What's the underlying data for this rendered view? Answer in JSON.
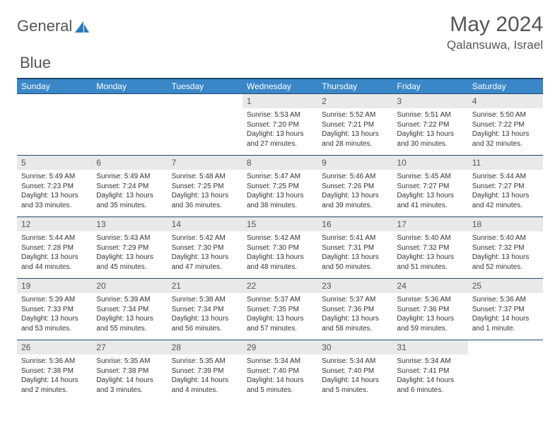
{
  "logo": {
    "text1": "General",
    "text2": "Blue",
    "accent": "#2d79bd"
  },
  "header": {
    "month": "May 2024",
    "location": "Qalansuwa, Israel"
  },
  "calendar": {
    "day_names": [
      "Sunday",
      "Monday",
      "Tuesday",
      "Wednesday",
      "Thursday",
      "Friday",
      "Saturday"
    ],
    "colors": {
      "header_bg": "#3a87c8",
      "header_border": "#20486b",
      "daynum_bg": "#e9e9e9"
    },
    "weeks": [
      [
        null,
        null,
        null,
        {
          "n": "1",
          "sr": "Sunrise: 5:53 AM",
          "ss": "Sunset: 7:20 PM",
          "dl": "Daylight: 13 hours and 27 minutes."
        },
        {
          "n": "2",
          "sr": "Sunrise: 5:52 AM",
          "ss": "Sunset: 7:21 PM",
          "dl": "Daylight: 13 hours and 28 minutes."
        },
        {
          "n": "3",
          "sr": "Sunrise: 5:51 AM",
          "ss": "Sunset: 7:22 PM",
          "dl": "Daylight: 13 hours and 30 minutes."
        },
        {
          "n": "4",
          "sr": "Sunrise: 5:50 AM",
          "ss": "Sunset: 7:22 PM",
          "dl": "Daylight: 13 hours and 32 minutes."
        }
      ],
      [
        {
          "n": "5",
          "sr": "Sunrise: 5:49 AM",
          "ss": "Sunset: 7:23 PM",
          "dl": "Daylight: 13 hours and 33 minutes."
        },
        {
          "n": "6",
          "sr": "Sunrise: 5:49 AM",
          "ss": "Sunset: 7:24 PM",
          "dl": "Daylight: 13 hours and 35 minutes."
        },
        {
          "n": "7",
          "sr": "Sunrise: 5:48 AM",
          "ss": "Sunset: 7:25 PM",
          "dl": "Daylight: 13 hours and 36 minutes."
        },
        {
          "n": "8",
          "sr": "Sunrise: 5:47 AM",
          "ss": "Sunset: 7:25 PM",
          "dl": "Daylight: 13 hours and 38 minutes."
        },
        {
          "n": "9",
          "sr": "Sunrise: 5:46 AM",
          "ss": "Sunset: 7:26 PM",
          "dl": "Daylight: 13 hours and 39 minutes."
        },
        {
          "n": "10",
          "sr": "Sunrise: 5:45 AM",
          "ss": "Sunset: 7:27 PM",
          "dl": "Daylight: 13 hours and 41 minutes."
        },
        {
          "n": "11",
          "sr": "Sunrise: 5:44 AM",
          "ss": "Sunset: 7:27 PM",
          "dl": "Daylight: 13 hours and 42 minutes."
        }
      ],
      [
        {
          "n": "12",
          "sr": "Sunrise: 5:44 AM",
          "ss": "Sunset: 7:28 PM",
          "dl": "Daylight: 13 hours and 44 minutes."
        },
        {
          "n": "13",
          "sr": "Sunrise: 5:43 AM",
          "ss": "Sunset: 7:29 PM",
          "dl": "Daylight: 13 hours and 45 minutes."
        },
        {
          "n": "14",
          "sr": "Sunrise: 5:42 AM",
          "ss": "Sunset: 7:30 PM",
          "dl": "Daylight: 13 hours and 47 minutes."
        },
        {
          "n": "15",
          "sr": "Sunrise: 5:42 AM",
          "ss": "Sunset: 7:30 PM",
          "dl": "Daylight: 13 hours and 48 minutes."
        },
        {
          "n": "16",
          "sr": "Sunrise: 5:41 AM",
          "ss": "Sunset: 7:31 PM",
          "dl": "Daylight: 13 hours and 50 minutes."
        },
        {
          "n": "17",
          "sr": "Sunrise: 5:40 AM",
          "ss": "Sunset: 7:32 PM",
          "dl": "Daylight: 13 hours and 51 minutes."
        },
        {
          "n": "18",
          "sr": "Sunrise: 5:40 AM",
          "ss": "Sunset: 7:32 PM",
          "dl": "Daylight: 13 hours and 52 minutes."
        }
      ],
      [
        {
          "n": "19",
          "sr": "Sunrise: 5:39 AM",
          "ss": "Sunset: 7:33 PM",
          "dl": "Daylight: 13 hours and 53 minutes."
        },
        {
          "n": "20",
          "sr": "Sunrise: 5:39 AM",
          "ss": "Sunset: 7:34 PM",
          "dl": "Daylight: 13 hours and 55 minutes."
        },
        {
          "n": "21",
          "sr": "Sunrise: 5:38 AM",
          "ss": "Sunset: 7:34 PM",
          "dl": "Daylight: 13 hours and 56 minutes."
        },
        {
          "n": "22",
          "sr": "Sunrise: 5:37 AM",
          "ss": "Sunset: 7:35 PM",
          "dl": "Daylight: 13 hours and 57 minutes."
        },
        {
          "n": "23",
          "sr": "Sunrise: 5:37 AM",
          "ss": "Sunset: 7:36 PM",
          "dl": "Daylight: 13 hours and 58 minutes."
        },
        {
          "n": "24",
          "sr": "Sunrise: 5:36 AM",
          "ss": "Sunset: 7:36 PM",
          "dl": "Daylight: 13 hours and 59 minutes."
        },
        {
          "n": "25",
          "sr": "Sunrise: 5:36 AM",
          "ss": "Sunset: 7:37 PM",
          "dl": "Daylight: 14 hours and 1 minute."
        }
      ],
      [
        {
          "n": "26",
          "sr": "Sunrise: 5:36 AM",
          "ss": "Sunset: 7:38 PM",
          "dl": "Daylight: 14 hours and 2 minutes."
        },
        {
          "n": "27",
          "sr": "Sunrise: 5:35 AM",
          "ss": "Sunset: 7:38 PM",
          "dl": "Daylight: 14 hours and 3 minutes."
        },
        {
          "n": "28",
          "sr": "Sunrise: 5:35 AM",
          "ss": "Sunset: 7:39 PM",
          "dl": "Daylight: 14 hours and 4 minutes."
        },
        {
          "n": "29",
          "sr": "Sunrise: 5:34 AM",
          "ss": "Sunset: 7:40 PM",
          "dl": "Daylight: 14 hours and 5 minutes."
        },
        {
          "n": "30",
          "sr": "Sunrise: 5:34 AM",
          "ss": "Sunset: 7:40 PM",
          "dl": "Daylight: 14 hours and 5 minutes."
        },
        {
          "n": "31",
          "sr": "Sunrise: 5:34 AM",
          "ss": "Sunset: 7:41 PM",
          "dl": "Daylight: 14 hours and 6 minutes."
        },
        null
      ]
    ]
  }
}
